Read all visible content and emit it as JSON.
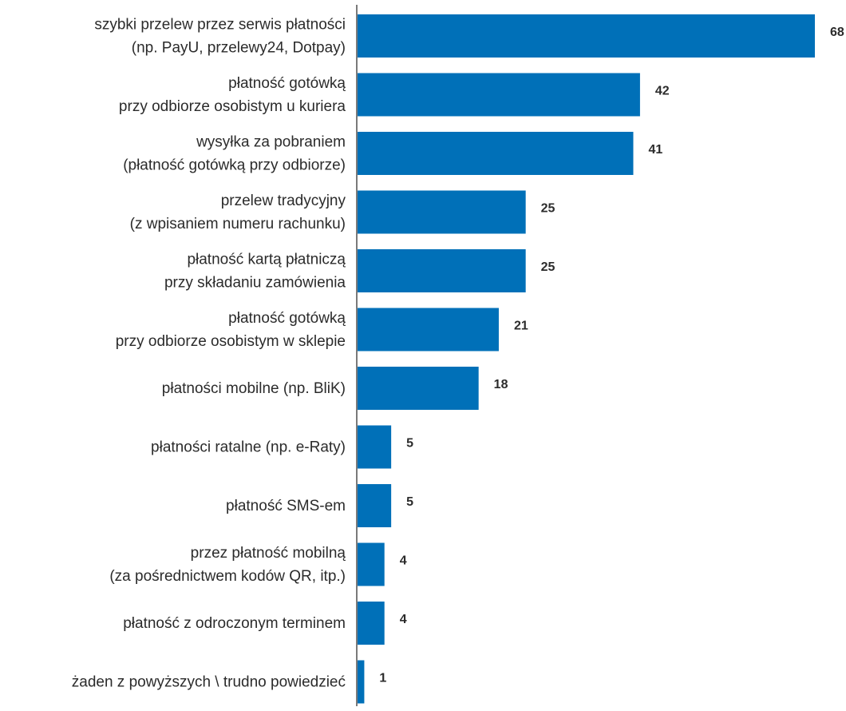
{
  "chart_data": {
    "type": "bar",
    "orientation": "horizontal",
    "title": "",
    "xlabel": "",
    "ylabel": "",
    "grid": false,
    "legend": "none",
    "xlim": [
      0,
      68
    ],
    "bar_color": "#0070b8",
    "axis_color": "#7a7a7a",
    "text_color": "#2b2b2b",
    "categories": [
      [
        "szybki przelew przez serwis płatności",
        "(np. PayU, przelewy24, Dotpay)"
      ],
      [
        "płatność gotówką",
        "przy odbiorze osobistym u kuriera"
      ],
      [
        "wysyłka za pobraniem",
        "(płatność gotówką przy odbiorze)"
      ],
      [
        "przelew tradycyjny",
        "(z wpisaniem numeru rachunku)"
      ],
      [
        "płatność kartą płatniczą",
        "przy składaniu zamówienia"
      ],
      [
        "płatność gotówką",
        "przy odbiorze osobistym w sklepie"
      ],
      [
        "płatności mobilne (np. BliK)"
      ],
      [
        "płatności ratalne (np. e-Raty)"
      ],
      [
        "płatność SMS-em"
      ],
      [
        "przez płatność mobilną",
        "(za pośrednictwem kodów QR, itp.)"
      ],
      [
        "płatność z odroczonym terminem"
      ],
      [
        "żaden z powyższych \\ trudno powiedzieć"
      ]
    ],
    "values": [
      68,
      42,
      41,
      25,
      25,
      21,
      18,
      5,
      5,
      4,
      4,
      1
    ]
  }
}
